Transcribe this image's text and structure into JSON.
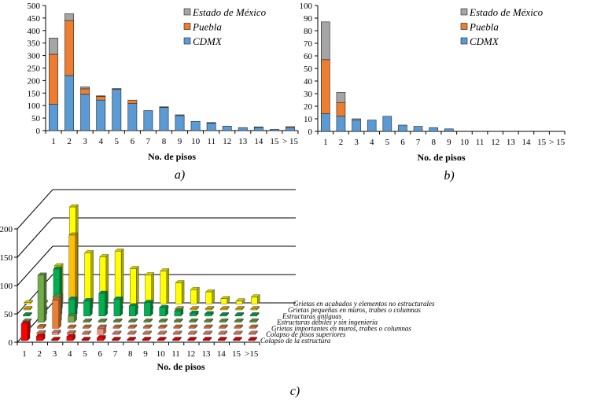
{
  "chart_data": [
    {
      "type": "bar",
      "stacked": true,
      "panel_label": "a)",
      "xlabel": "No. de pisos",
      "ylabel": "",
      "ylim": [
        0,
        500
      ],
      "yticks": [
        0,
        50,
        100,
        150,
        200,
        250,
        300,
        350,
        400,
        450,
        500
      ],
      "legend_position": "top-right",
      "categories": [
        "1",
        "2",
        "3",
        "4",
        "5",
        "6",
        "7",
        "8",
        "9",
        "10",
        "11",
        "12",
        "13",
        "14",
        "15",
        "> 15"
      ],
      "series": [
        {
          "name": "CDMX",
          "color": "#5b9bd5",
          "values": [
            105,
            220,
            145,
            122,
            165,
            108,
            80,
            93,
            60,
            37,
            30,
            18,
            12,
            12,
            5,
            12
          ]
        },
        {
          "name": "Puebla",
          "color": "#ed7d31",
          "values": [
            200,
            220,
            22,
            15,
            3,
            14,
            0,
            0,
            0,
            0,
            0,
            0,
            0,
            0,
            0,
            4
          ]
        },
        {
          "name": "Estado de México",
          "color": "#a5a5a5",
          "values": [
            65,
            27,
            8,
            2,
            0,
            0,
            0,
            2,
            3,
            0,
            2,
            0,
            0,
            3,
            0,
            0
          ]
        }
      ]
    },
    {
      "type": "bar",
      "stacked": true,
      "panel_label": "b)",
      "xlabel": "No. de pisos",
      "ylabel": "",
      "ylim": [
        0,
        100
      ],
      "yticks": [
        0,
        10,
        20,
        30,
        40,
        50,
        60,
        70,
        80,
        90,
        100
      ],
      "legend_position": "top-right",
      "categories": [
        "1",
        "2",
        "3",
        "4",
        "5",
        "6",
        "7",
        "8",
        "9",
        "10",
        "11",
        "12",
        "13",
        "14",
        "15",
        "> 15"
      ],
      "series": [
        {
          "name": "CDMX",
          "color": "#5b9bd5",
          "values": [
            14,
            12,
            9,
            9,
            12,
            5,
            4,
            3,
            2,
            0,
            0,
            0,
            0,
            0,
            0,
            0
          ]
        },
        {
          "name": "Puebla",
          "color": "#ed7d31",
          "values": [
            43,
            11,
            0,
            0,
            0,
            0,
            0,
            0,
            0,
            0,
            0,
            0,
            0,
            0,
            0,
            0
          ]
        },
        {
          "name": "Estado de México",
          "color": "#a5a5a5",
          "values": [
            30,
            8,
            1,
            0,
            0,
            0,
            0,
            0,
            0,
            0,
            0,
            0,
            0,
            0,
            0,
            0
          ]
        }
      ]
    },
    {
      "type": "bar3d",
      "panel_label": "c)",
      "xlabel": "No. de pisos",
      "ylabel": "",
      "ylim": [
        0,
        200
      ],
      "yticks": [
        0,
        50,
        100,
        150,
        200
      ],
      "categories": [
        "1",
        "2",
        "3",
        "4",
        "5",
        "6",
        "7",
        "8",
        "9",
        "10",
        "11",
        "12",
        "13",
        "14",
        "15",
        ">15"
      ],
      "series": [
        {
          "name": "Colapso de la estructura",
          "color": "#ff0000",
          "values": [
            30,
            8,
            2,
            7,
            1,
            5,
            2,
            1,
            2,
            0,
            0,
            0,
            0,
            0,
            0,
            0
          ]
        },
        {
          "name": "Colapso de pisos superiores",
          "color": "#f4907a",
          "values": [
            20,
            3,
            4,
            3,
            0,
            10,
            0,
            2,
            0,
            0,
            0,
            0,
            0,
            0,
            0,
            0
          ]
        },
        {
          "name": "Grietas importantes en muros, trabes o columnas",
          "color": "#ed7d31",
          "values": [
            0,
            3,
            50,
            2,
            0,
            0,
            0,
            0,
            0,
            0,
            0,
            0,
            0,
            0,
            0,
            0
          ]
        },
        {
          "name": "Estructuras débiles y sin ingeniería",
          "color": "#70ad47",
          "values": [
            0,
            83,
            46,
            11,
            0,
            0,
            0,
            0,
            0,
            0,
            0,
            0,
            0,
            0,
            0,
            0
          ]
        },
        {
          "name": "Estructuras antiguas",
          "color": "#00b050",
          "values": [
            0,
            10,
            83,
            30,
            27,
            40,
            30,
            18,
            24,
            15,
            9,
            5,
            4,
            2,
            1,
            2
          ]
        },
        {
          "name": "Grietas pequeñas en muros, trabes o columnas",
          "color": "#ffc000",
          "values": [
            0,
            0,
            25,
            132,
            16,
            5,
            0,
            0,
            0,
            0,
            0,
            0,
            0,
            0,
            0,
            0
          ]
        },
        {
          "name": "Grietas en acabados y elementos no estructurales",
          "color": "#ffff00",
          "values": [
            0,
            0,
            67,
            171,
            90,
            83,
            93,
            62,
            51,
            58,
            37,
            25,
            21,
            9,
            5,
            12
          ]
        }
      ]
    }
  ]
}
